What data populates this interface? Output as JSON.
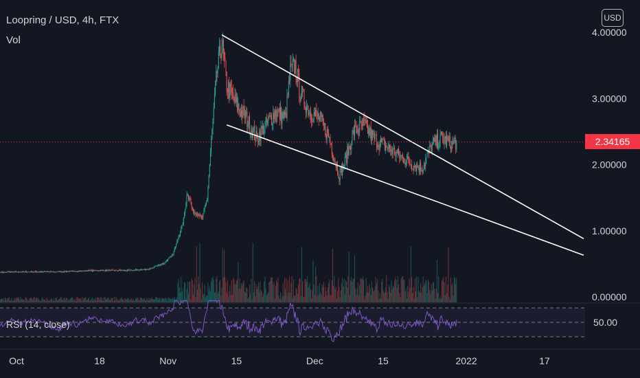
{
  "header": {
    "symbol_line": "Loopring / USD, 4h, FTX",
    "volume_label": "Vol",
    "currency_button": "USD"
  },
  "last_price": "2.34165",
  "rsi": {
    "label": "RSI (14, close)",
    "level_label": "50.00"
  },
  "colors": {
    "background": "#131722",
    "up": "#26a69a",
    "down": "#ef5350",
    "rsi_line": "#7e57c2",
    "trendline": "#ffffff",
    "last_price": "#f23645"
  },
  "chart_data": {
    "type": "candlestick",
    "interval": "4h",
    "y_axis_ticks": [
      "4.00000",
      "3.00000",
      "2.00000",
      "1.00000",
      "0.00000"
    ],
    "ylim": [
      0,
      4.1
    ],
    "x_tick_labels": [
      "Oct",
      "18",
      "Nov",
      "15",
      "Dec",
      "15",
      "2022",
      "17"
    ],
    "x_tick_dates": [
      "2021-10-01",
      "2021-10-18",
      "2021-11-01",
      "2021-11-15",
      "2021-12-01",
      "2021-12-15",
      "2022-01-01",
      "2022-01-17"
    ],
    "price_keypoints": [
      [
        "2021-09-26",
        0.37
      ],
      [
        "2021-10-03",
        0.38
      ],
      [
        "2021-10-10",
        0.38
      ],
      [
        "2021-10-17",
        0.4
      ],
      [
        "2021-10-24",
        0.4
      ],
      [
        "2021-10-28",
        0.42
      ],
      [
        "2021-10-31",
        0.5
      ],
      [
        "2021-11-02",
        0.65
      ],
      [
        "2021-11-04",
        1.1
      ],
      [
        "2021-11-05",
        1.6
      ],
      [
        "2021-11-06",
        1.3
      ],
      [
        "2021-11-08",
        1.2
      ],
      [
        "2021-11-09",
        1.5
      ],
      [
        "2021-11-10",
        2.5
      ],
      [
        "2021-11-11",
        3.4
      ],
      [
        "2021-11-12",
        3.85
      ],
      [
        "2021-11-13",
        3.2
      ],
      [
        "2021-11-15",
        2.9
      ],
      [
        "2021-11-17",
        2.7
      ],
      [
        "2021-11-19",
        2.4
      ],
      [
        "2021-11-21",
        2.6
      ],
      [
        "2021-11-23",
        2.8
      ],
      [
        "2021-11-25",
        2.7
      ],
      [
        "2021-11-26",
        3.4
      ],
      [
        "2021-11-27",
        3.5
      ],
      [
        "2021-11-28",
        3.1
      ],
      [
        "2021-11-30",
        2.8
      ],
      [
        "2021-12-02",
        2.7
      ],
      [
        "2021-12-04",
        2.4
      ],
      [
        "2021-12-05",
        2.1
      ],
      [
        "2021-12-06",
        1.85
      ],
      [
        "2021-12-07",
        2.0
      ],
      [
        "2021-12-09",
        2.5
      ],
      [
        "2021-12-11",
        2.6
      ],
      [
        "2021-12-13",
        2.4
      ],
      [
        "2021-12-15",
        2.3
      ],
      [
        "2021-12-17",
        2.2
      ],
      [
        "2021-12-19",
        2.1
      ],
      [
        "2021-12-21",
        2.0
      ],
      [
        "2021-12-23",
        1.95
      ],
      [
        "2021-12-25",
        2.3
      ],
      [
        "2021-12-27",
        2.4
      ],
      [
        "2021-12-29",
        2.3
      ],
      [
        "2021-12-30",
        2.34
      ]
    ],
    "last_close": 2.34165,
    "trendlines": [
      {
        "from": [
          "2021-11-12",
          3.96
        ],
        "to": [
          "2022-01-25",
          0.88
        ]
      },
      {
        "from": [
          "2021-11-13",
          2.6
        ],
        "to": [
          "2022-01-25",
          0.63
        ]
      }
    ],
    "rsi_levels": [
      70,
      50,
      30
    ]
  }
}
